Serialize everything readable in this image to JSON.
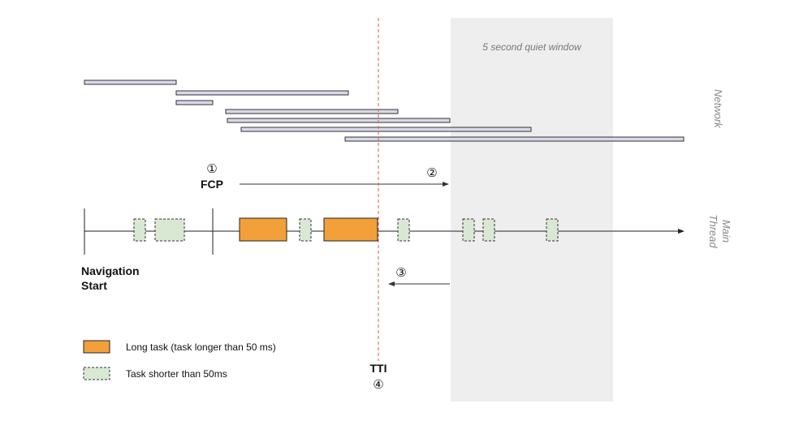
{
  "quiet_window": {
    "label": "5 second quiet window",
    "color": "#eeeeee"
  },
  "side_labels": {
    "network": "Network",
    "main_line1": "Main",
    "main_line2": "Thread"
  },
  "markers": {
    "fcp_num": "①",
    "fcp_label": "FCP",
    "step2_num": "②",
    "step3_num": "③",
    "tti_label": "TTI",
    "tti_num": "④",
    "nav_line1": "Navigation",
    "nav_line2": "Start"
  },
  "legend": {
    "long_label": "Long task (task longer than 50 ms)",
    "short_label": "Task shorter than 50ms"
  },
  "colors": {
    "long_task": "#f3a03a",
    "short_task": "#d9e8d3",
    "network_bar": "#d8d8ea",
    "tti_line": "#e8574a"
  }
}
